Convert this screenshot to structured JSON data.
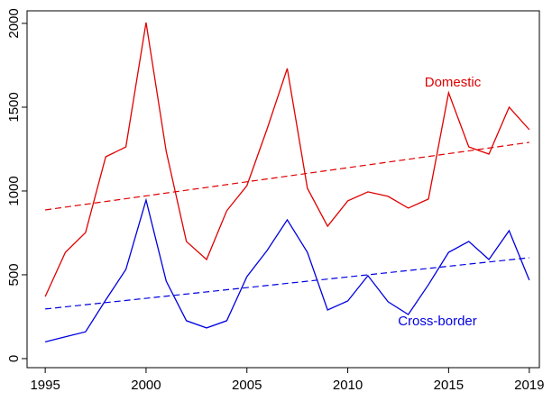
{
  "chart_data": {
    "type": "line",
    "x": [
      1995,
      1996,
      1997,
      1998,
      1999,
      2000,
      2001,
      2002,
      2003,
      2004,
      2005,
      2006,
      2007,
      2008,
      2009,
      2010,
      2011,
      2012,
      2013,
      2014,
      2015,
      2016,
      2017,
      2018,
      2019
    ],
    "trend_x": [
      1995,
      2019
    ],
    "series": [
      {
        "name": "Domestic",
        "color": "#e00000",
        "values": [
          370,
          634,
          752,
          1204,
          1263,
          2005,
          1236,
          699,
          591,
          882,
          1032,
          1370,
          1731,
          1016,
          790,
          941,
          995,
          968,
          898,
          952,
          1586,
          1263,
          1220,
          1500,
          1366
        ],
        "trend": [
          887,
          1290
        ]
      },
      {
        "name": "Cross-border",
        "color": "#0000e0",
        "values": [
          100,
          130,
          160,
          350,
          532,
          946,
          462,
          226,
          183,
          226,
          489,
          645,
          828,
          634,
          290,
          344,
          495,
          339,
          263,
          441,
          634,
          699,
          591,
          763,
          468
        ],
        "trend": [
          296,
          602
        ]
      }
    ],
    "xlim": [
      1994.1,
      2019.5
    ],
    "xticks": [
      1995,
      2000,
      2005,
      2010,
      2015,
      2019
    ],
    "ylim": [
      -54,
      2075
    ],
    "yticks": [
      0,
      500,
      1000,
      1500,
      2000
    ]
  }
}
